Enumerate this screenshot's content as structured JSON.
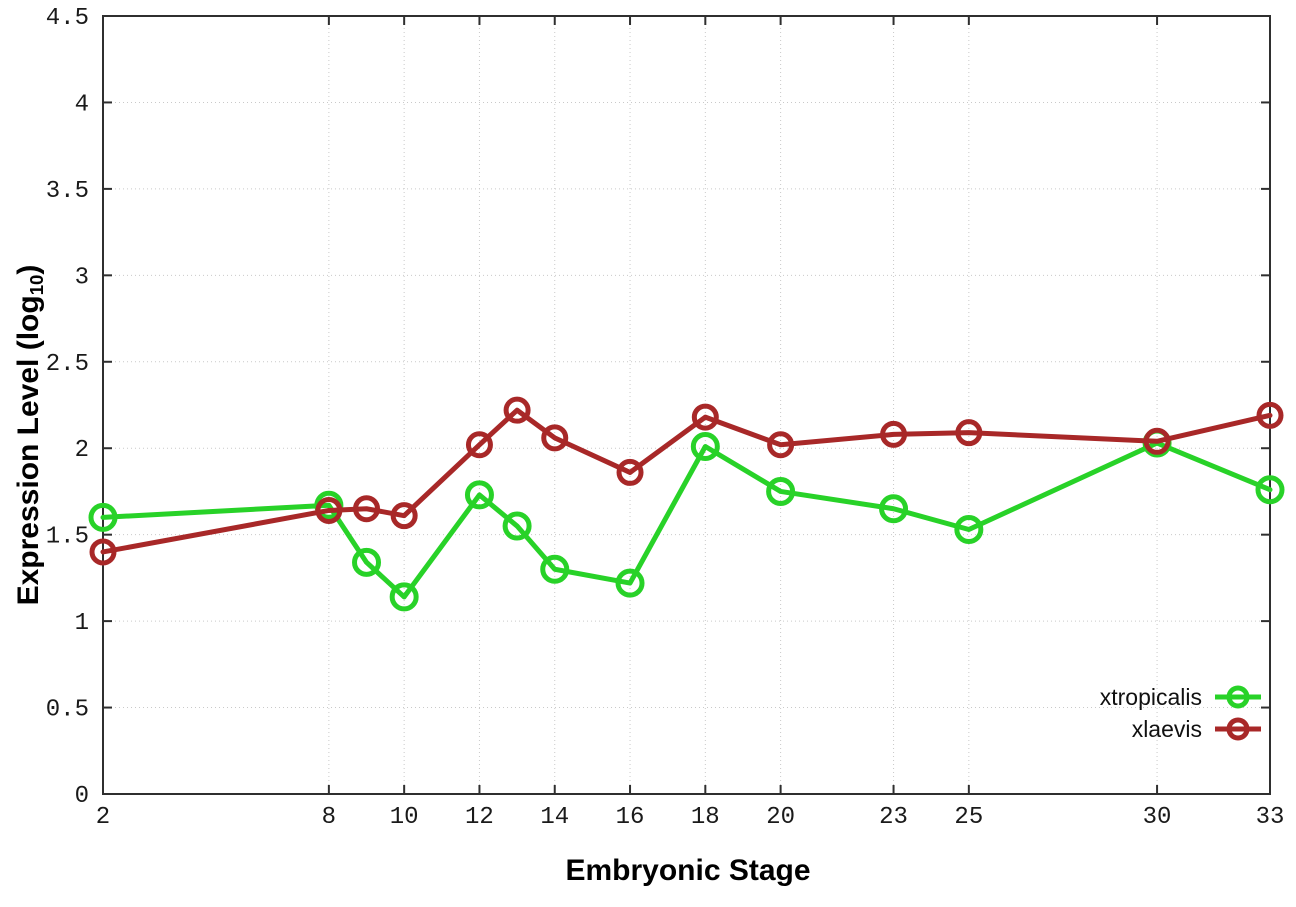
{
  "chart_data": {
    "type": "line",
    "title": "",
    "xlabel": "Embryonic Stage",
    "ylabel": {
      "main": "Expression Level (log",
      "sub": "10",
      "end": ")"
    },
    "xlim": [
      2,
      33
    ],
    "ylim": [
      0,
      4.5
    ],
    "grid": true,
    "legend_position": "inside-bottom-right",
    "background": "#ffffff",
    "grid_color": "#c9c9c9",
    "axis_color": "#2f2f2f",
    "tick_label_color": "#1a1a1a",
    "x": [
      2,
      8,
      9,
      10,
      12,
      13,
      14,
      16,
      18,
      20,
      23,
      25,
      30,
      33
    ],
    "xticks": [
      2,
      8,
      10,
      12,
      14,
      16,
      18,
      20,
      23,
      25,
      30,
      33
    ],
    "yticks": [
      0,
      0.5,
      1,
      1.5,
      2,
      2.5,
      3,
      3.5,
      4,
      4.5
    ],
    "series": [
      {
        "name": "xtropicalis",
        "color": "#28d228",
        "marker": "open-circle",
        "values": [
          1.6,
          1.67,
          1.34,
          1.14,
          1.73,
          1.55,
          1.3,
          1.22,
          2.01,
          1.75,
          1.65,
          1.53,
          2.03,
          1.76
        ]
      },
      {
        "name": "xlaevis",
        "color": "#a82828",
        "marker": "open-circle",
        "values": [
          1.4,
          1.64,
          1.65,
          1.61,
          2.02,
          2.22,
          2.06,
          1.86,
          2.18,
          2.02,
          2.08,
          2.09,
          2.04,
          2.19
        ]
      }
    ]
  }
}
